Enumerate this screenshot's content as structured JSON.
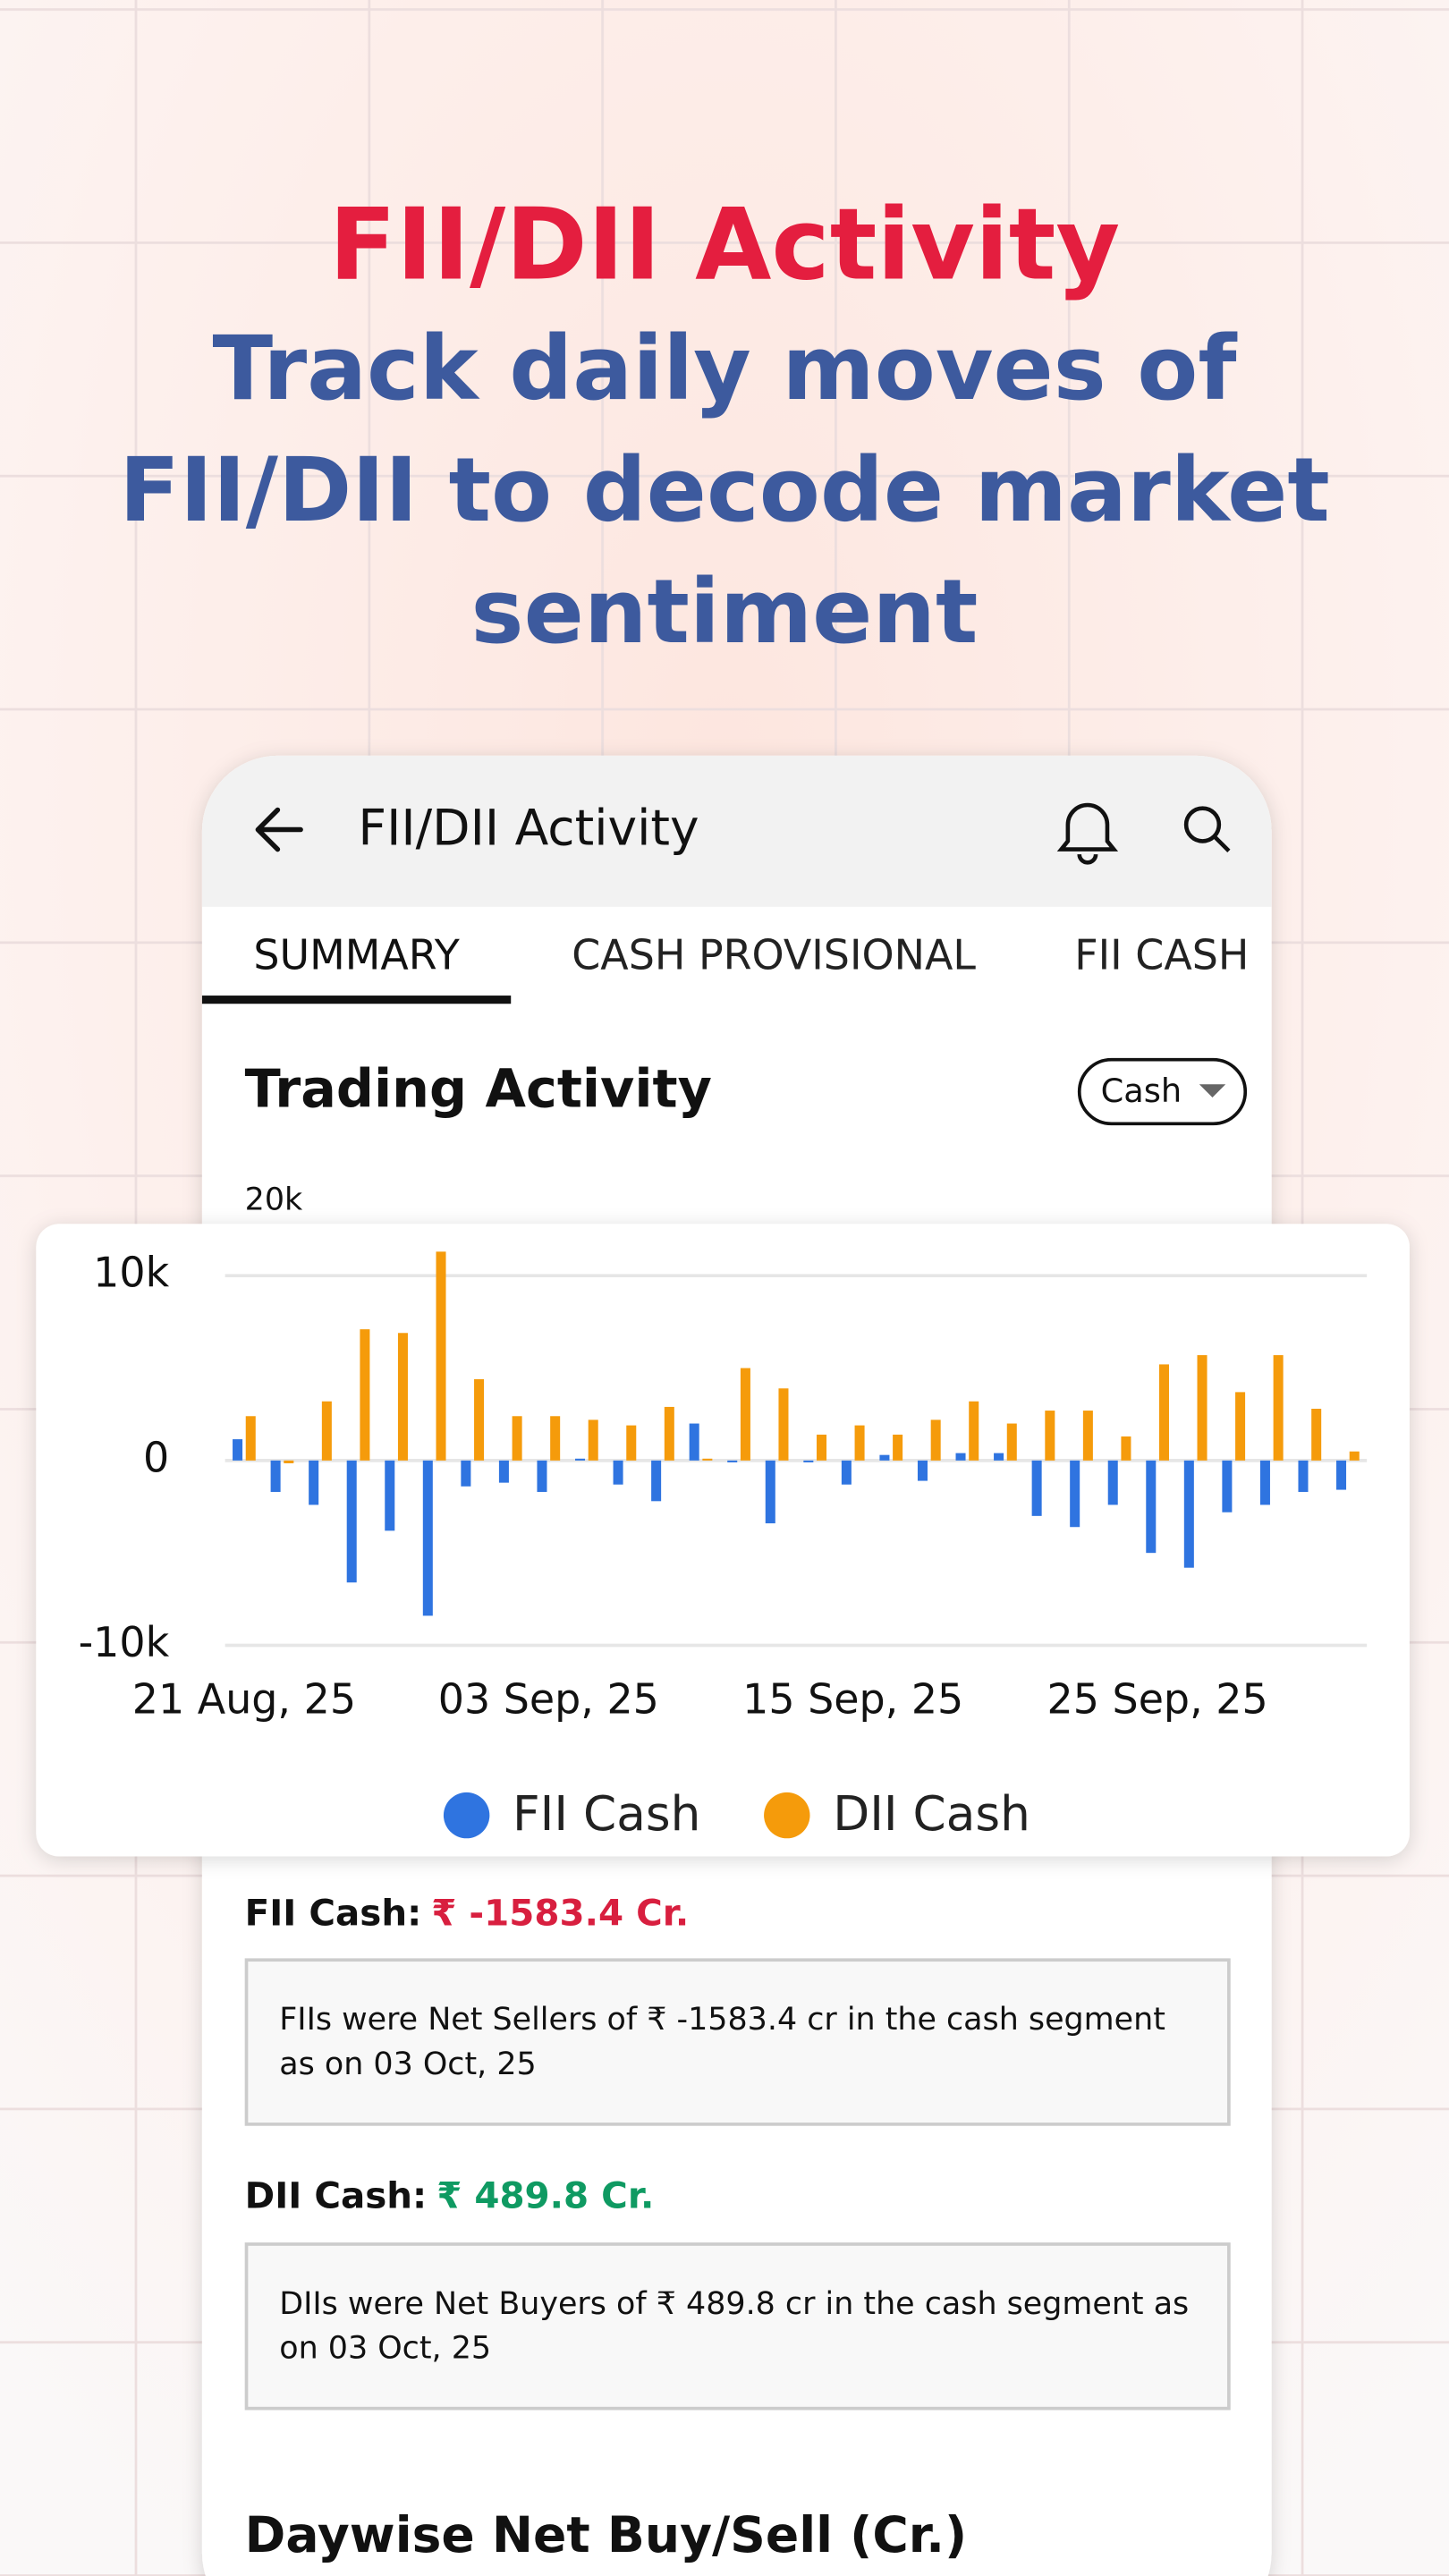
{
  "header": {
    "title": "FII/DII Activity",
    "subtitle_lines": [
      "Track daily moves of",
      "FII/DII to decode market",
      "sentiment"
    ]
  },
  "app": {
    "title": "FII/DII Activity",
    "tabs": [
      "SUMMARY",
      "CASH PROVISIONAL",
      "FII CASH"
    ],
    "section_title": "Trading Activity",
    "dropdown": "Cash",
    "hidden_axis_label": "20k",
    "fii": {
      "label": "FII Cash:",
      "value": "₹ -1583.4 Cr.",
      "note_lines": [
        "FIIs were Net Sellers of ₹ -1583.4 cr in the cash segment",
        "as on 03 Oct, 25"
      ]
    },
    "dii": {
      "label": "DII Cash:",
      "value": "₹ 489.8 Cr.",
      "note_lines": [
        "DIIs were Net Buyers of ₹ 489.8 cr in the cash segment as",
        "on 03 Oct, 25"
      ]
    },
    "daywise_title": "Daywise Net Buy/Sell (Cr.)"
  },
  "chart_data": {
    "type": "bar",
    "categories": [
      "21 Aug, 25",
      null,
      null,
      null,
      null,
      null,
      null,
      null,
      "03 Sep, 25",
      null,
      null,
      null,
      null,
      null,
      null,
      null,
      "15 Sep, 25",
      null,
      null,
      null,
      null,
      null,
      null,
      null,
      "25 Sep, 25",
      null,
      null,
      null,
      null,
      null
    ],
    "series": [
      {
        "name": "FII Cash",
        "color": "#2f74e0",
        "values": [
          1150,
          -1700,
          -2400,
          -6600,
          -3800,
          -8400,
          -1400,
          -1200,
          -1700,
          100,
          -1300,
          -2200,
          2000,
          -100,
          -3400,
          -100,
          -1300,
          300,
          -1100,
          400,
          400,
          -3000,
          -3600,
          -2400,
          -5000,
          -5800,
          -2800,
          -2400,
          -1700,
          -1583.4
        ]
      },
      {
        "name": "DII Cash",
        "color": "#f59b0b",
        "values": [
          2400,
          -150,
          3200,
          7100,
          6900,
          11300,
          4400,
          2400,
          2400,
          2200,
          1900,
          2900,
          100,
          5000,
          3900,
          1400,
          1900,
          1400,
          2200,
          3200,
          2000,
          2700,
          2700,
          1300,
          5200,
          5700,
          3700,
          5700,
          2800,
          489.8
        ]
      }
    ],
    "ylim": [
      -10000,
      12000
    ],
    "yticks": [
      {
        "value": -10000,
        "label": "-10k"
      },
      0,
      {
        "value": 10000,
        "label": "10k"
      }
    ],
    "grid": true
  }
}
